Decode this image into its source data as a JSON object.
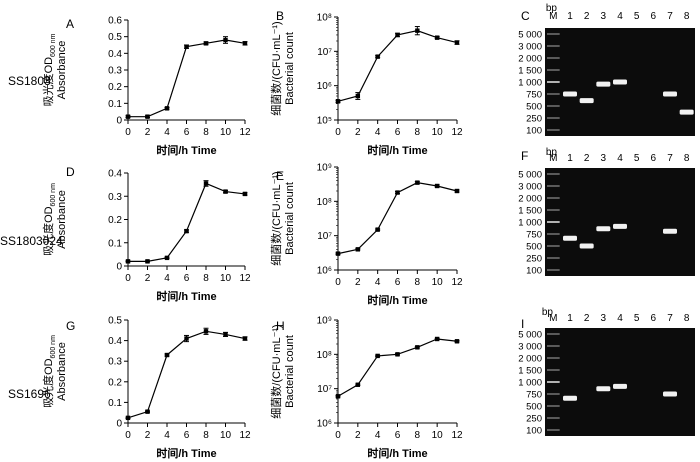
{
  "figure": {
    "strain_labels": [
      "SS1803",
      "SS1803024",
      "SS1696"
    ],
    "gel_bp_label": "bp"
  },
  "chart_data": [
    {
      "id": "A",
      "panel_letter": "A",
      "type": "line",
      "ylabel": "吸光度OD600 nm",
      "ylabel_sub": "Absorbance",
      "ylabel_main": "吸光度OD",
      "ylabel_subscript": "600 nm",
      "xlabel": "时间/h Time",
      "x": [
        0,
        2,
        4,
        6,
        8,
        10,
        12
      ],
      "y": [
        0.02,
        0.02,
        0.07,
        0.44,
        0.46,
        0.48,
        0.46
      ],
      "err": [
        0.005,
        0.005,
        0.005,
        0.01,
        0.008,
        0.02,
        0.01
      ],
      "ylim": [
        0,
        0.6
      ],
      "yticks": [
        "0",
        "0.1",
        "0.2",
        "0.3",
        "0.4",
        "0.5",
        "0.6"
      ],
      "xticks": [
        "0",
        "2",
        "4",
        "6",
        "8",
        "10",
        "12"
      ],
      "yscale": "linear"
    },
    {
      "id": "B",
      "panel_letter": "B",
      "type": "line",
      "ylabel": "细菌数/(CFU·mL⁻¹)",
      "ylabel_sub": "Bacterial count",
      "xlabel": "时间/h Time",
      "x": [
        0,
        2,
        4,
        6,
        8,
        10,
        12
      ],
      "y": [
        350000,
        500000,
        7000000,
        30000000,
        40000000,
        25000000,
        18000000
      ],
      "err_log": [
        0.03,
        0.1,
        0.03,
        0.05,
        0.12,
        0.03,
        0.05
      ],
      "ylim_exp": [
        5,
        8
      ],
      "yticks": [
        "10⁵",
        "10⁶",
        "10⁷",
        "10⁸"
      ],
      "xticks": [
        "0",
        "2",
        "4",
        "6",
        "8",
        "10",
        "12"
      ],
      "yscale": "log"
    },
    {
      "id": "D",
      "panel_letter": "D",
      "type": "line",
      "ylabel": "吸光度OD600 nm",
      "ylabel_sub": "Absorbance",
      "ylabel_main": "吸光度OD",
      "ylabel_subscript": "600 nm",
      "xlabel": "时间/h Time",
      "x": [
        0,
        2,
        4,
        6,
        8,
        10,
        12
      ],
      "y": [
        0.02,
        0.02,
        0.035,
        0.15,
        0.355,
        0.32,
        0.31
      ],
      "err": [
        0.002,
        0.002,
        0.003,
        0.005,
        0.012,
        0.005,
        0.005
      ],
      "ylim": [
        0,
        0.4
      ],
      "yticks": [
        "0",
        "0.1",
        "0.2",
        "0.3",
        "0.4"
      ],
      "xticks": [
        "0",
        "2",
        "4",
        "6",
        "8",
        "10",
        "12"
      ],
      "yscale": "linear"
    },
    {
      "id": "E",
      "panel_letter": "E",
      "type": "line",
      "ylabel": "细菌数/(CFU·mL⁻¹)",
      "ylabel_sub": "Bacterial count",
      "xlabel": "时间/h Time",
      "x": [
        0,
        2,
        4,
        6,
        8,
        10,
        12
      ],
      "y": [
        3000000,
        4000000,
        15000000,
        180000000,
        350000000,
        280000000,
        200000000
      ],
      "err_log": [
        0.02,
        0.02,
        0.02,
        0.03,
        0.03,
        0.03,
        0.03
      ],
      "ylim_exp": [
        6,
        9
      ],
      "yticks": [
        "10⁶",
        "10⁷",
        "10⁸",
        "10⁹"
      ],
      "xticks": [
        "0",
        "2",
        "4",
        "6",
        "8",
        "10",
        "12"
      ],
      "yscale": "log"
    },
    {
      "id": "G",
      "panel_letter": "G",
      "type": "line",
      "ylabel": "吸光度OD600 nm",
      "ylabel_sub": "Absorbance",
      "ylabel_main": "吸光度OD",
      "ylabel_subscript": "600 nm",
      "xlabel": "时间/h Time",
      "x": [
        0,
        2,
        4,
        6,
        8,
        10,
        12
      ],
      "y": [
        0.025,
        0.055,
        0.33,
        0.41,
        0.445,
        0.43,
        0.41
      ],
      "err": [
        0.003,
        0.003,
        0.005,
        0.015,
        0.015,
        0.01,
        0.008
      ],
      "ylim": [
        0,
        0.5
      ],
      "yticks": [
        "0",
        "0.1",
        "0.2",
        "0.3",
        "0.4",
        "0.5"
      ],
      "xticks": [
        "0",
        "2",
        "4",
        "6",
        "8",
        "10",
        "12"
      ],
      "yscale": "linear"
    },
    {
      "id": "H",
      "panel_letter": "H",
      "type": "line",
      "ylabel": "细菌数/(CFU·mL⁻¹)",
      "ylabel_sub": "Bacterial count",
      "xlabel": "时间/h Time",
      "x": [
        0,
        2,
        4,
        6,
        8,
        10,
        12
      ],
      "y": [
        6000000,
        13000000,
        90000000,
        100000000,
        160000000,
        280000000,
        240000000
      ],
      "err_log": [
        0.02,
        0.02,
        0.02,
        0.02,
        0.02,
        0.02,
        0.02
      ],
      "ylim_exp": [
        6,
        9
      ],
      "yticks": [
        "10⁶",
        "10⁷",
        "10⁸",
        "10⁹"
      ],
      "xticks": [
        "0",
        "2",
        "4",
        "6",
        "8",
        "10",
        "12"
      ],
      "yscale": "log"
    }
  ],
  "gels": [
    {
      "id": "C",
      "panel_letter": "C",
      "lanes": [
        "M",
        "1",
        "2",
        "3",
        "4",
        "5",
        "6",
        "7",
        "8"
      ],
      "ladder": [
        "5 000",
        "3 000",
        "2 000",
        "1 500",
        "1 000",
        "750",
        "500",
        "250",
        "100"
      ],
      "bands": [
        {
          "lane": "1",
          "bp": 750
        },
        {
          "lane": "2",
          "bp": 600
        },
        {
          "lane": "3",
          "bp": 950
        },
        {
          "lane": "4",
          "bp": 1000
        },
        {
          "lane": "7",
          "bp": 750
        },
        {
          "lane": "8",
          "bp": 350
        }
      ]
    },
    {
      "id": "F",
      "panel_letter": "F",
      "lanes": [
        "M",
        "1",
        "2",
        "3",
        "4",
        "5",
        "6",
        "7",
        "8"
      ],
      "ladder": [
        "5 000",
        "3 000",
        "2 000",
        "1 500",
        "1 000",
        "750",
        "500",
        "250",
        "100"
      ],
      "bands": [
        {
          "lane": "1",
          "bp": 650
        },
        {
          "lane": "2",
          "bp": 500
        },
        {
          "lane": "3",
          "bp": 850
        },
        {
          "lane": "4",
          "bp": 900
        },
        {
          "lane": "7",
          "bp": 800
        }
      ]
    },
    {
      "id": "I",
      "panel_letter": "I",
      "lanes": [
        "M",
        "1",
        "2",
        "3",
        "4",
        "5",
        "6",
        "7",
        "8"
      ],
      "ladder": [
        "5 000",
        "3 000",
        "2 000",
        "1 500",
        "1 000",
        "750",
        "500",
        "250",
        "100"
      ],
      "bands": [
        {
          "lane": "1",
          "bp": 650
        },
        {
          "lane": "3",
          "bp": 850
        },
        {
          "lane": "4",
          "bp": 900
        },
        {
          "lane": "7",
          "bp": 750
        }
      ]
    }
  ]
}
